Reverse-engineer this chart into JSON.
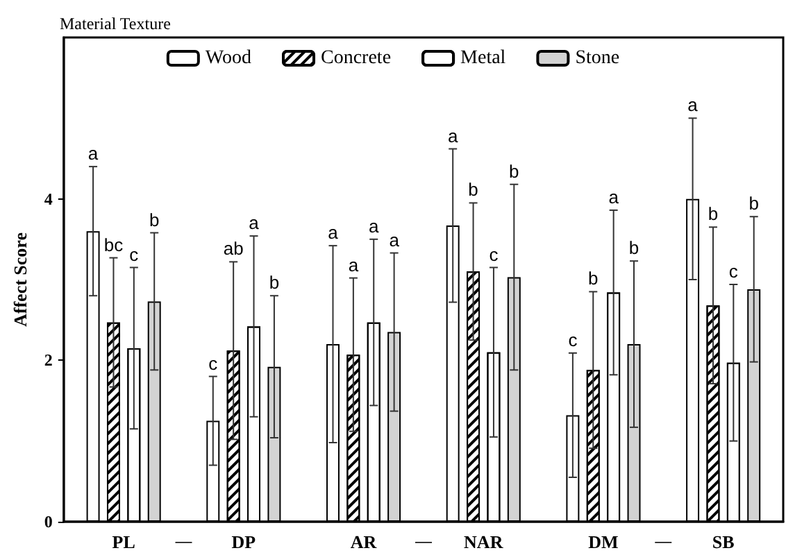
{
  "chart_data": {
    "type": "bar",
    "title": "Material Texture",
    "ylabel": "Affect Score",
    "categories": [
      "PL",
      "DP",
      "AR",
      "NAR",
      "DM",
      "SB"
    ],
    "series": [
      {
        "name": "Wood",
        "color": "#ffffff",
        "values": [
          3.6,
          1.25,
          2.2,
          3.67,
          1.32,
          4.0
        ],
        "errors": [
          0.8,
          0.55,
          1.22,
          0.95,
          0.77,
          1.0
        ]
      },
      {
        "name": "Concrete",
        "color": "#ffffff",
        "values": [
          2.47,
          2.12,
          2.07,
          3.1,
          1.88,
          2.68
        ],
        "errors": [
          0.8,
          1.1,
          0.95,
          0.85,
          0.97,
          0.97
        ]
      },
      {
        "name": "Metal",
        "color": "#ffffff",
        "values": [
          2.15,
          2.42,
          2.47,
          2.1,
          2.84,
          1.97
        ],
        "errors": [
          1.0,
          1.12,
          1.03,
          1.05,
          1.02,
          0.97
        ]
      },
      {
        "name": "Stone",
        "color": "#d3d3d3",
        "values": [
          2.73,
          1.92,
          2.35,
          3.03,
          2.2,
          2.88
        ],
        "errors": [
          0.85,
          0.88,
          0.98,
          1.15,
          1.03,
          0.9
        ]
      }
    ],
    "annotations": [
      "a",
      "c",
      "a",
      "a",
      "c",
      "a",
      "bc",
      "ab",
      "a",
      "b",
      "b",
      "b",
      "c",
      "a",
      "a",
      "c",
      "a",
      "c",
      "b",
      "b",
      "a",
      "b",
      "b",
      "b",
      "—",
      "—",
      "—"
    ],
    "ylim": [
      0,
      6
    ],
    "yticks": [
      0,
      2,
      4
    ],
    "grid": false,
    "legend": "top"
  }
}
